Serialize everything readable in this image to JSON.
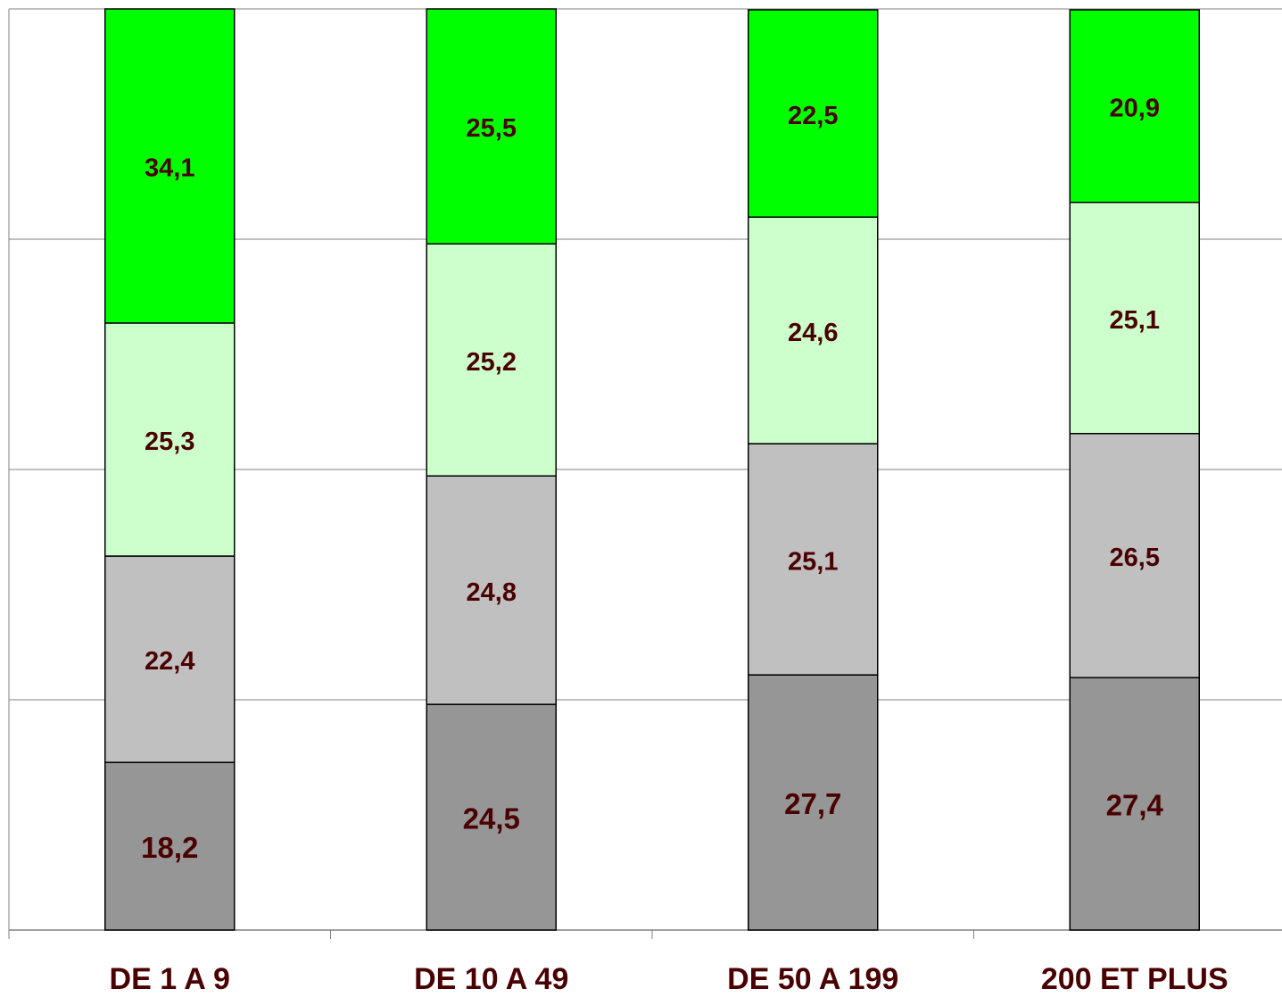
{
  "chart_data": {
    "type": "stacked_bar",
    "categories": [
      "DE 1 A 9",
      "DE 10 A 49",
      "DE 50 A 199",
      "200 ET PLUS"
    ],
    "series": [
      {
        "color": "#969696",
        "values": [
          18.2,
          24.5,
          27.7,
          27.4
        ],
        "value_labels": [
          "18,2",
          "24,5",
          "27,7",
          "27,4"
        ]
      },
      {
        "color": "#c0c0c0",
        "values": [
          22.4,
          24.8,
          25.1,
          26.5
        ],
        "value_labels": [
          "22,4",
          "24,8",
          "25,1",
          "26,5"
        ]
      },
      {
        "color": "#ccffcc",
        "values": [
          25.3,
          25.2,
          24.6,
          25.1
        ],
        "value_labels": [
          "25,3",
          "25,2",
          "24,6",
          "25,1"
        ]
      },
      {
        "color": "#00ff00",
        "values": [
          34.1,
          25.5,
          22.5,
          20.9
        ],
        "value_labels": [
          "34,1",
          "25,5",
          "22,5",
          "20,9"
        ]
      }
    ],
    "ylim": [
      0,
      100
    ],
    "yticks": [
      0,
      25,
      50,
      75,
      100
    ],
    "grid": true
  }
}
